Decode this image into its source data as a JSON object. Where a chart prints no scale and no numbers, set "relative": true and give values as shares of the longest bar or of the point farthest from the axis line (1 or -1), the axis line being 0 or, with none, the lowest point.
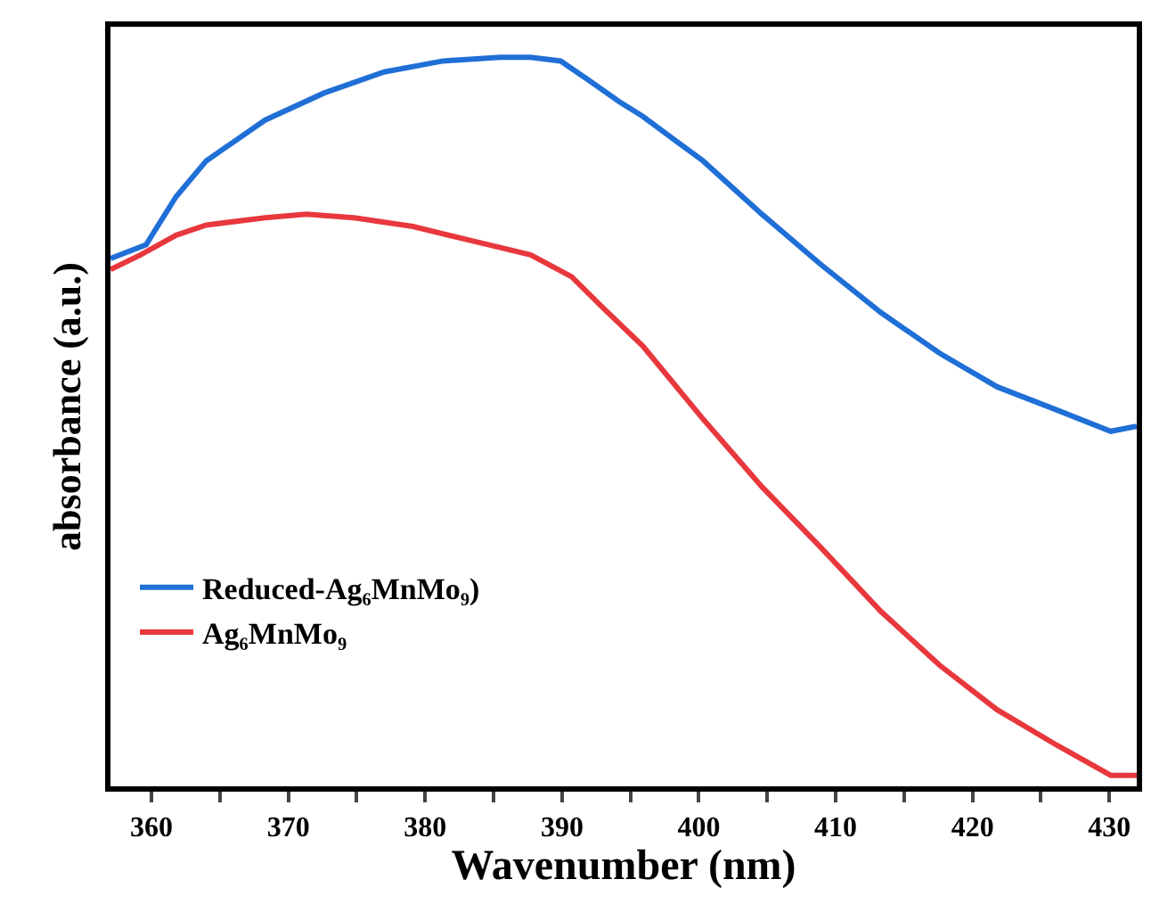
{
  "chart_data": {
    "type": "line",
    "relative": true,
    "xlabel": "Wavenumber (nm)",
    "ylabel": "absorbance (a.u.)",
    "xlim": [
      357,
      432
    ],
    "xticks": [
      360,
      {
        "value": 365,
        "label": null
      },
      370,
      {
        "value": 375,
        "label": null
      },
      380,
      {
        "value": 385,
        "label": null
      },
      390,
      {
        "value": 395,
        "label": null
      },
      400,
      {
        "value": 405,
        "label": null
      },
      410,
      {
        "value": 415,
        "label": null
      },
      420,
      {
        "value": 425,
        "label": null
      },
      430
    ],
    "tick_labels": "x",
    "legend": "bottom left",
    "marker": "none",
    "line_style": "solid",
    "series": [
      {
        "name": "Reduced-Ag₆MnMo₉)",
        "color": "#1f6fd6",
        "x": [
          357,
          359.6,
          361.8,
          364.0,
          368.3,
          372.6,
          377.0,
          381.3,
          385.5,
          387.7,
          389.9,
          392.0,
          394.2,
          395.9,
          400.3,
          404.6,
          408.9,
          413.3,
          417.6,
          421.8,
          426.2,
          430.1,
          432
        ],
        "values": [
          0.724,
          0.743,
          0.809,
          0.858,
          0.914,
          0.951,
          0.98,
          0.995,
          1.0,
          1.0,
          0.995,
          0.968,
          0.939,
          0.919,
          0.858,
          0.785,
          0.716,
          0.65,
          0.594,
          0.548,
          0.516,
          0.487,
          0.494
        ]
      },
      {
        "name": "Ag₆MnMo₉",
        "color": "#e8383d",
        "x": [
          357,
          359.2,
          361.8,
          364.0,
          368.3,
          371.3,
          374.8,
          379.1,
          383.5,
          387.7,
          390.7,
          392.9,
          395.9,
          400.3,
          404.6,
          408.9,
          413.3,
          417.6,
          421.8,
          426.2,
          430.1,
          432
        ],
        "values": [
          0.709,
          0.729,
          0.756,
          0.77,
          0.78,
          0.785,
          0.78,
          0.768,
          0.748,
          0.729,
          0.699,
          0.658,
          0.604,
          0.504,
          0.411,
          0.328,
          0.24,
          0.166,
          0.105,
          0.056,
          0.015,
          0.015
        ]
      }
    ]
  }
}
